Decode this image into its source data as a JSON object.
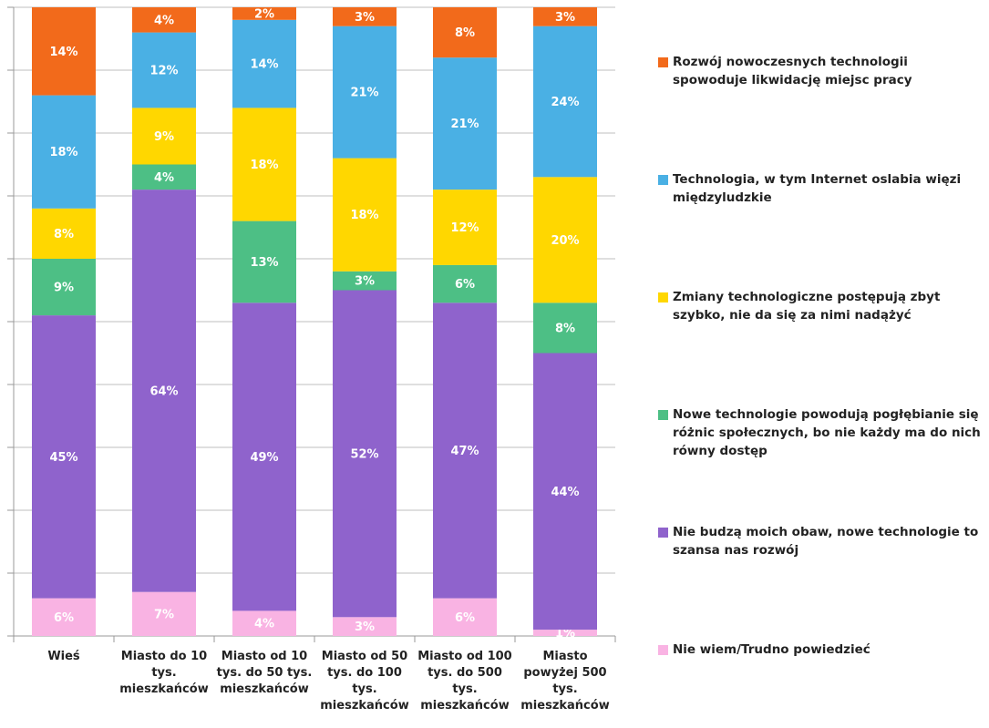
{
  "chart_data": {
    "type": "stacked_bar",
    "categories": [
      "Wieś",
      "Miasto do 10 tys. mieszkańców",
      "Miasto od 10 tys. do 50 tys. mieszkańców",
      "Miasto od 50 tys. do 100 tys. mieszkańców",
      "Miasto od 100 tys. do 500 tys. mieszkańców",
      "Miasto powyżej 500 tys. mieszkańców"
    ],
    "series": [
      {
        "name": "Nie wiem/Trudno powiedzieć",
        "color": "#f9b3e3",
        "values": [
          6,
          7,
          4,
          3,
          6,
          1
        ],
        "value_labels": [
          "6%",
          "7%",
          "4%",
          "3%",
          "6%",
          "1%"
        ]
      },
      {
        "name": "Nie budzą moich obaw, nowe technologie to szansa nas rozwój",
        "color": "#8f63cc",
        "values": [
          45,
          64,
          49,
          52,
          47,
          44
        ],
        "value_labels": [
          "45%",
          "64%",
          "49%",
          "52%",
          "47%",
          "44%"
        ]
      },
      {
        "name": "Nowe technologie powodują pogłębianie się różnic społecznych, bo nie każdy ma do nich równy dostęp",
        "color": "#4dbf85",
        "values": [
          9,
          4,
          13,
          3,
          6,
          8
        ],
        "value_labels": [
          "9%",
          "4%",
          "13%",
          "3%",
          "6%",
          "8%"
        ]
      },
      {
        "name": "Zmiany technologiczne postępują zbyt szybko, nie da się za nimi nadążyć",
        "color": "#ffd700",
        "values": [
          8,
          9,
          18,
          18,
          12,
          20
        ],
        "value_labels": [
          "8%",
          "9%",
          "18%",
          "18%",
          "12%",
          "20%"
        ]
      },
      {
        "name": "Technologia, w tym Internet oslabia więzi międzyludzkie",
        "color": "#4ab0e4",
        "values": [
          18,
          12,
          14,
          21,
          21,
          24
        ],
        "value_labels": [
          "18%",
          "12%",
          "14%",
          "21%",
          "21%",
          "24%"
        ]
      },
      {
        "name": "Rozwój nowoczesnych technologii spowoduje likwidację miejsc pracy",
        "color": "#f26a1b",
        "values": [
          14,
          4,
          2,
          3,
          8,
          3
        ],
        "value_labels": [
          "14%",
          "4%",
          "2%",
          "3%",
          "8%",
          "3%"
        ]
      }
    ],
    "ylim": [
      0,
      100
    ],
    "yticks": [
      0,
      10,
      20,
      30,
      40,
      50,
      60,
      70,
      80,
      90,
      100
    ],
    "grid": true
  }
}
